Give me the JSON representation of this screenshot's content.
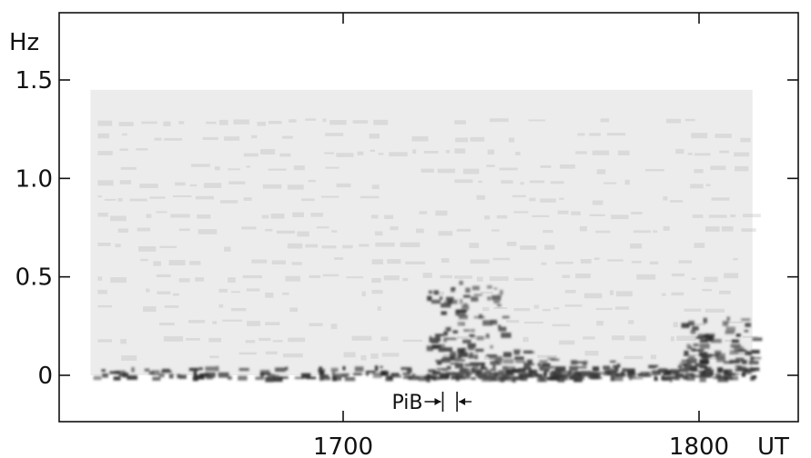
{
  "chart_data": {
    "type": "heatmap",
    "title": "",
    "xlabel": "UT",
    "ylabel": "Hz",
    "x_unit": "UT",
    "y_unit": "Hz",
    "xlim": [
      1620,
      1830
    ],
    "ylim": [
      -0.25,
      1.7
    ],
    "x_ticks": [
      {
        "value": 1700,
        "label": "1700"
      },
      {
        "value": 1800,
        "label": "1800"
      }
    ],
    "y_ticks": [
      {
        "value": 0,
        "label": "0"
      },
      {
        "value": 0.5,
        "label": "0.5"
      },
      {
        "value": 1.0,
        "label": "1.0"
      },
      {
        "value": 1.5,
        "label": "1.5"
      }
    ],
    "grid": false,
    "spectrogram": {
      "x_range": [
        1629,
        1815
      ],
      "y_range": [
        0,
        1.45
      ],
      "description_of_intensity": "dark = high power",
      "features": [
        {
          "x_start": 1629,
          "x_end": 1815,
          "y_max": 0.05,
          "intensity": 0.9
        },
        {
          "x_start": 1723,
          "x_end": 1732,
          "y_max": 0.45,
          "intensity": 0.8
        },
        {
          "x_start": 1732,
          "x_end": 1745,
          "y_max": 0.5,
          "intensity": 0.55
        },
        {
          "x_start": 1732,
          "x_end": 1760,
          "y_max": 0.15,
          "intensity": 0.75
        },
        {
          "x_start": 1760,
          "x_end": 1795,
          "y_max": 0.08,
          "intensity": 0.7
        },
        {
          "x_start": 1795,
          "x_end": 1815,
          "y_max": 0.3,
          "intensity": 0.85
        }
      ]
    },
    "annotations": [
      {
        "text": "PiB",
        "x_start": 1728,
        "x_end": 1732,
        "y": -0.14
      }
    ]
  }
}
